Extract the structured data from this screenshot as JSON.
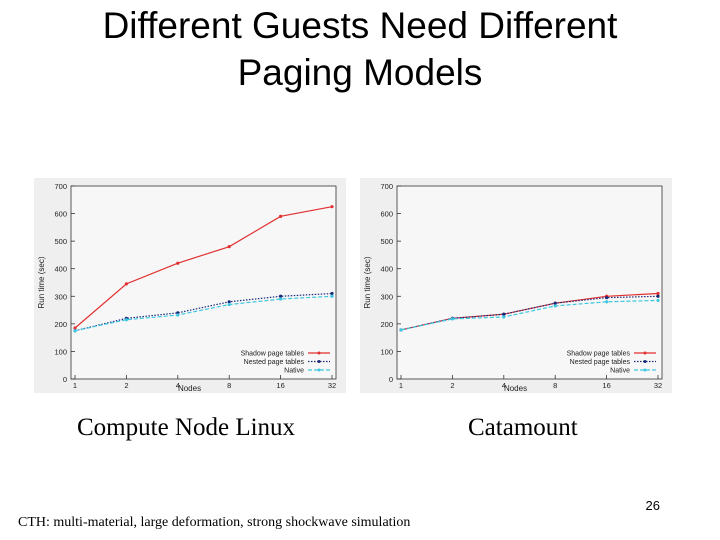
{
  "slide": {
    "title_line1": "Different Guests Need Different",
    "title_line2": "Paging Models",
    "caption_left": "Compute Node Linux",
    "caption_right": "Catamount",
    "page_number": "26",
    "footnote": "CTH: multi-material, large deformation, strong shockwave simulation"
  },
  "chart_data": [
    {
      "type": "line",
      "xlabel": "Nodes",
      "ylabel": "Run time (sec)",
      "x_scale": "log2",
      "categories": [
        "1",
        "2",
        "4",
        "8",
        "16",
        "32"
      ],
      "ylim": [
        0,
        700
      ],
      "yticks": [
        0,
        100,
        200,
        300,
        400,
        500,
        600,
        700
      ],
      "grid": false,
      "legend_position": "bottom-right",
      "series": [
        {
          "name": "Shadow page tables",
          "color": "#e23030",
          "style": "solid",
          "values": [
            185,
            345,
            420,
            480,
            590,
            625
          ]
        },
        {
          "name": "Nested page tables",
          "color": "#1a2a7a",
          "style": "dotted",
          "values": [
            175,
            220,
            240,
            280,
            300,
            310
          ]
        },
        {
          "name": "Native",
          "color": "#3ec8e0",
          "style": "dashed",
          "values": [
            175,
            215,
            232,
            270,
            290,
            300
          ]
        }
      ]
    },
    {
      "type": "line",
      "xlabel": "Nodes",
      "ylabel": "Run time (sec)",
      "x_scale": "log2",
      "categories": [
        "1",
        "2",
        "4",
        "8",
        "16",
        "32"
      ],
      "ylim": [
        0,
        700
      ],
      "yticks": [
        0,
        100,
        200,
        300,
        400,
        500,
        600,
        700
      ],
      "grid": false,
      "legend_position": "bottom-right",
      "series": [
        {
          "name": "Shadow page tables",
          "color": "#e23030",
          "style": "solid",
          "values": [
            178,
            220,
            235,
            275,
            300,
            310
          ]
        },
        {
          "name": "Nested page tables",
          "color": "#1a2a7a",
          "style": "dotted",
          "values": [
            178,
            220,
            235,
            275,
            295,
            300
          ]
        },
        {
          "name": "Native",
          "color": "#3ec8e0",
          "style": "dashed",
          "values": [
            178,
            218,
            225,
            265,
            280,
            285
          ]
        }
      ]
    }
  ]
}
